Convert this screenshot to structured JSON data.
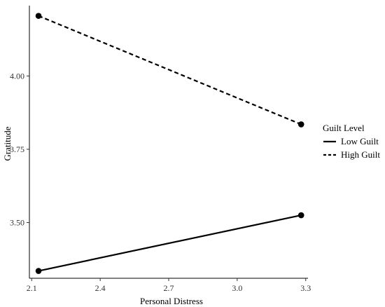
{
  "chart_data": {
    "type": "line",
    "xlabel": "Personal Distress",
    "ylabel": "Gratitude",
    "xlim": [
      2.09,
      3.31
    ],
    "ylim": [
      3.31,
      4.24
    ],
    "x_ticks": [
      2.1,
      2.4,
      2.7,
      3.0,
      3.3
    ],
    "x_tick_labels": [
      "2.1",
      "2.4",
      "2.7",
      "3.0",
      "3.3"
    ],
    "y_ticks": [
      3.5,
      3.75,
      4.0
    ],
    "y_tick_labels": [
      "3.50",
      "3.75",
      "4.00"
    ],
    "grid": false,
    "legend": {
      "title": "Guilt Level",
      "placement": "right"
    },
    "series": [
      {
        "name": "Low Guilt",
        "line_style": "solid",
        "x": [
          2.13,
          3.28
        ],
        "y": [
          3.335,
          3.525
        ]
      },
      {
        "name": "High Guilt",
        "line_style": "dashed",
        "x": [
          2.13,
          3.28
        ],
        "y": [
          4.205,
          3.835
        ]
      }
    ],
    "colors": {
      "line": "#000000",
      "axis": "#000000",
      "tick_text": "#333333"
    }
  }
}
